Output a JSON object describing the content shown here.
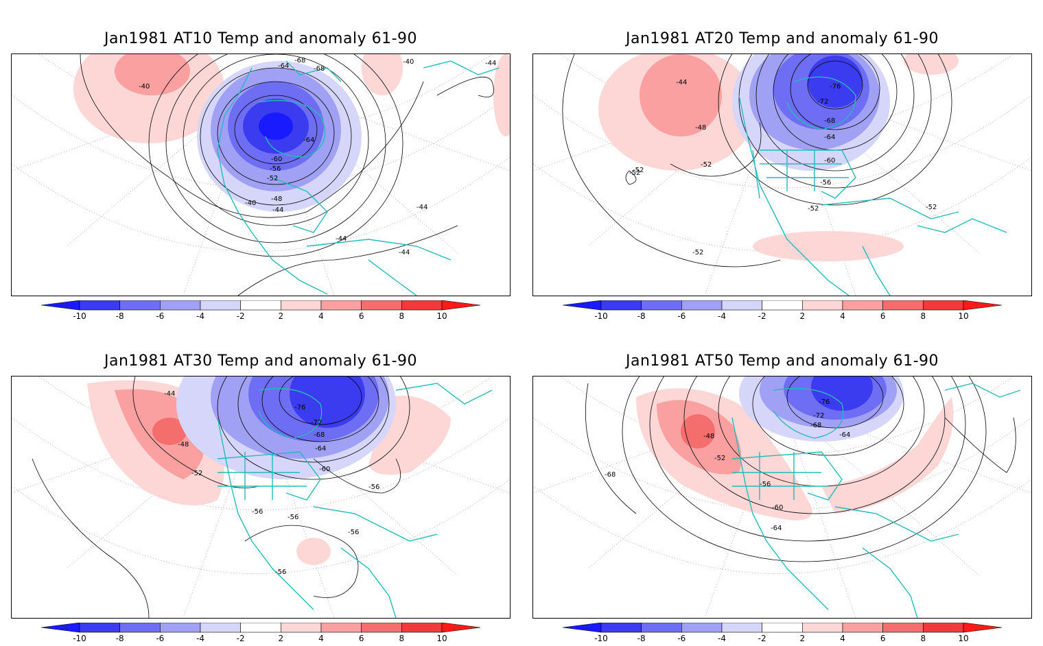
{
  "colorbar": {
    "levels": [
      "-10",
      "-8",
      "-6",
      "-4",
      "-2",
      "2",
      "4",
      "6",
      "8",
      "10"
    ],
    "colors": [
      "#1a1aff",
      "#3b3bef",
      "#6e6ef5",
      "#a0a0f5",
      "#d6d6fb",
      "#ffffff",
      "#fdd6d6",
      "#fba0a0",
      "#f56e6e",
      "#ef3b3b",
      "#ff1a1a"
    ]
  },
  "panels": [
    {
      "title": "Jan1981 AT10 Temp and anomaly 61-90",
      "contour_labels": [
        "-40",
        "-64",
        "-68",
        "-68",
        "-40",
        "-44",
        "-64",
        "-60",
        "-56",
        "-52",
        "-48",
        "-40",
        "-44",
        "-44",
        "-44",
        "-44"
      ]
    },
    {
      "title": "Jan1981 AT20 Temp and anomaly 61-90",
      "contour_labels": [
        "-44",
        "-48",
        "-52",
        "-52",
        "-52",
        "-76",
        "-72",
        "-68",
        "-64",
        "-60",
        "-56",
        "-52",
        "-52",
        "-52"
      ]
    },
    {
      "title": "Jan1981 AT30 Temp and anomaly 61-90",
      "contour_labels": [
        "-44",
        "-48",
        "-52",
        "-76",
        "-72",
        "-68",
        "-64",
        "-60",
        "-56",
        "-56",
        "-56",
        "-56",
        "-56"
      ]
    },
    {
      "title": "Jan1981 AT50 Temp and anomaly 61-90",
      "contour_labels": [
        "-48",
        "-52",
        "-68",
        "-76",
        "-72",
        "-68",
        "-64",
        "-56",
        "-60",
        "-64"
      ]
    }
  ]
}
